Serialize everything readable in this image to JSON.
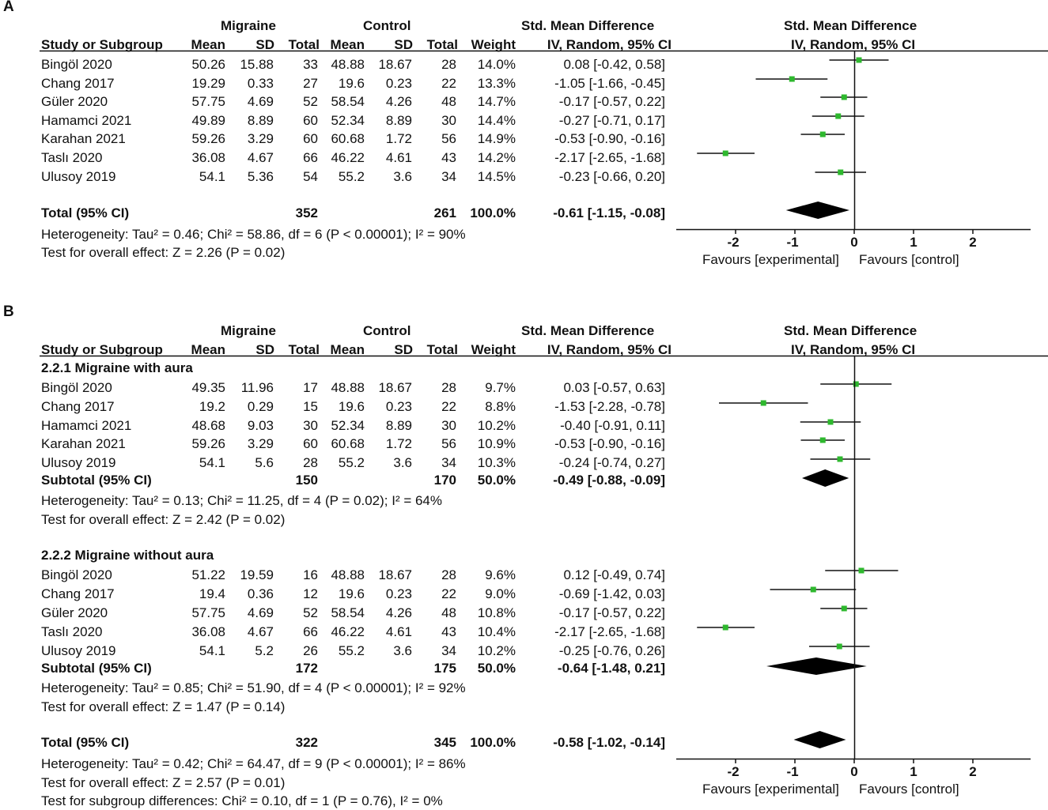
{
  "chart_data": [
    {
      "type": "forest",
      "panel": "A",
      "group_headers": {
        "experimental": "Migraine",
        "control": "Control",
        "effect": "Std. Mean Difference",
        "plot": "Std. Mean Difference"
      },
      "columns": [
        "Study or Subgroup",
        "Mean",
        "SD",
        "Total",
        "Mean",
        "SD",
        "Total",
        "Weight",
        "IV, Random, 95% CI",
        "IV, Random, 95% CI"
      ],
      "studies": [
        {
          "name": "Bingöl 2020",
          "m1": "50.26",
          "sd1": "15.88",
          "n1": "33",
          "m2": "48.88",
          "sd2": "18.67",
          "n2": "28",
          "weight": "14.0%",
          "ci_text": "0.08 [-0.42, 0.58]",
          "est": 0.08,
          "lo": -0.42,
          "hi": 0.58
        },
        {
          "name": "Chang 2017",
          "m1": "19.29",
          "sd1": "0.33",
          "n1": "27",
          "m2": "19.6",
          "sd2": "0.23",
          "n2": "22",
          "weight": "13.3%",
          "ci_text": "-1.05 [-1.66, -0.45]",
          "est": -1.05,
          "lo": -1.66,
          "hi": -0.45
        },
        {
          "name": "Güler 2020",
          "m1": "57.75",
          "sd1": "4.69",
          "n1": "52",
          "m2": "58.54",
          "sd2": "4.26",
          "n2": "48",
          "weight": "14.7%",
          "ci_text": "-0.17 [-0.57, 0.22]",
          "est": -0.17,
          "lo": -0.57,
          "hi": 0.22
        },
        {
          "name": "Hamamci 2021",
          "m1": "49.89",
          "sd1": "8.89",
          "n1": "60",
          "m2": "52.34",
          "sd2": "8.89",
          "n2": "30",
          "weight": "14.4%",
          "ci_text": "-0.27 [-0.71, 0.17]",
          "est": -0.27,
          "lo": -0.71,
          "hi": 0.17
        },
        {
          "name": "Karahan 2021",
          "m1": "59.26",
          "sd1": "3.29",
          "n1": "60",
          "m2": "60.68",
          "sd2": "1.72",
          "n2": "56",
          "weight": "14.9%",
          "ci_text": "-0.53 [-0.90, -0.16]",
          "est": -0.53,
          "lo": -0.9,
          "hi": -0.16
        },
        {
          "name": "Taslı 2020",
          "m1": "36.08",
          "sd1": "4.67",
          "n1": "66",
          "m2": "46.22",
          "sd2": "4.61",
          "n2": "43",
          "weight": "14.2%",
          "ci_text": "-2.17 [-2.65, -1.68]",
          "est": -2.17,
          "lo": -2.65,
          "hi": -1.68
        },
        {
          "name": "Ulusoy 2019",
          "m1": "54.1",
          "sd1": "5.36",
          "n1": "54",
          "m2": "55.2",
          "sd2": "3.6",
          "n2": "34",
          "weight": "14.5%",
          "ci_text": "-0.23 [-0.66, 0.20]",
          "est": -0.23,
          "lo": -0.66,
          "hi": 0.2
        }
      ],
      "total": {
        "label": "Total (95% CI)",
        "n1": "352",
        "n2": "261",
        "weight": "100.0%",
        "ci_text": "-0.61 [-1.15, -0.08]",
        "est": -0.61,
        "lo": -1.15,
        "hi": -0.08
      },
      "heterogeneity": "Heterogeneity: Tau² = 0.46; Chi² = 58.86, df = 6 (P < 0.00001); I² = 90%",
      "overall_effect": "Test for overall effect: Z = 2.26 (P = 0.02)",
      "xlim": [
        -3,
        3
      ],
      "xticks": [
        "-2",
        "-1",
        "0",
        "1",
        "2"
      ],
      "xlabel_left": "Favours [experimental]",
      "xlabel_right": "Favours [control]"
    },
    {
      "type": "forest",
      "panel": "B",
      "group_headers": {
        "experimental": "Migraine",
        "control": "Control",
        "effect": "Std. Mean Difference",
        "plot": "Std. Mean Difference"
      },
      "columns": [
        "Study or Subgroup",
        "Mean",
        "SD",
        "Total",
        "Mean",
        "SD",
        "Total",
        "Weight",
        "IV, Random, 95% CI",
        "IV, Random, 95% CI"
      ],
      "subgroups": [
        {
          "title": "2.2.1 Migraine with aura",
          "studies": [
            {
              "name": "Bingöl 2020",
              "m1": "49.35",
              "sd1": "11.96",
              "n1": "17",
              "m2": "48.88",
              "sd2": "18.67",
              "n2": "28",
              "weight": "9.7%",
              "ci_text": "0.03 [-0.57, 0.63]",
              "est": 0.03,
              "lo": -0.57,
              "hi": 0.63
            },
            {
              "name": "Chang 2017",
              "m1": "19.2",
              "sd1": "0.29",
              "n1": "15",
              "m2": "19.6",
              "sd2": "0.23",
              "n2": "22",
              "weight": "8.8%",
              "ci_text": "-1.53 [-2.28, -0.78]",
              "est": -1.53,
              "lo": -2.28,
              "hi": -0.78
            },
            {
              "name": "Hamamci 2021",
              "m1": "48.68",
              "sd1": "9.03",
              "n1": "30",
              "m2": "52.34",
              "sd2": "8.89",
              "n2": "30",
              "weight": "10.2%",
              "ci_text": "-0.40 [-0.91, 0.11]",
              "est": -0.4,
              "lo": -0.91,
              "hi": 0.11
            },
            {
              "name": "Karahan 2021",
              "m1": "59.26",
              "sd1": "3.29",
              "n1": "60",
              "m2": "60.68",
              "sd2": "1.72",
              "n2": "56",
              "weight": "10.9%",
              "ci_text": "-0.53 [-0.90, -0.16]",
              "est": -0.53,
              "lo": -0.9,
              "hi": -0.16
            },
            {
              "name": "Ulusoy 2019",
              "m1": "54.1",
              "sd1": "5.6",
              "n1": "28",
              "m2": "55.2",
              "sd2": "3.6",
              "n2": "34",
              "weight": "10.3%",
              "ci_text": "-0.24 [-0.74, 0.27]",
              "est": -0.24,
              "lo": -0.74,
              "hi": 0.27
            }
          ],
          "subtotal": {
            "label": "Subtotal (95% CI)",
            "n1": "150",
            "n2": "170",
            "weight": "50.0%",
            "ci_text": "-0.49 [-0.88, -0.09]",
            "est": -0.49,
            "lo": -0.88,
            "hi": -0.09
          },
          "heterogeneity": "Heterogeneity: Tau² = 0.13; Chi² = 11.25, df = 4 (P = 0.02); I² = 64%",
          "overall_effect": "Test for overall effect: Z = 2.42 (P = 0.02)"
        },
        {
          "title": "2.2.2 Migraine without aura",
          "studies": [
            {
              "name": "Bingöl 2020",
              "m1": "51.22",
              "sd1": "19.59",
              "n1": "16",
              "m2": "48.88",
              "sd2": "18.67",
              "n2": "28",
              "weight": "9.6%",
              "ci_text": "0.12 [-0.49, 0.74]",
              "est": 0.12,
              "lo": -0.49,
              "hi": 0.74
            },
            {
              "name": "Chang 2017",
              "m1": "19.4",
              "sd1": "0.36",
              "n1": "12",
              "m2": "19.6",
              "sd2": "0.23",
              "n2": "22",
              "weight": "9.0%",
              "ci_text": "-0.69 [-1.42, 0.03]",
              "est": -0.69,
              "lo": -1.42,
              "hi": 0.03
            },
            {
              "name": "Güler 2020",
              "m1": "57.75",
              "sd1": "4.69",
              "n1": "52",
              "m2": "58.54",
              "sd2": "4.26",
              "n2": "48",
              "weight": "10.8%",
              "ci_text": "-0.17 [-0.57, 0.22]",
              "est": -0.17,
              "lo": -0.57,
              "hi": 0.22
            },
            {
              "name": "Taslı 2020",
              "m1": "36.08",
              "sd1": "4.67",
              "n1": "66",
              "m2": "46.22",
              "sd2": "4.61",
              "n2": "43",
              "weight": "10.4%",
              "ci_text": "-2.17 [-2.65, -1.68]",
              "est": -2.17,
              "lo": -2.65,
              "hi": -1.68
            },
            {
              "name": "Ulusoy 2019",
              "m1": "54.1",
              "sd1": "5.2",
              "n1": "26",
              "m2": "55.2",
              "sd2": "3.6",
              "n2": "34",
              "weight": "10.2%",
              "ci_text": "-0.25 [-0.76, 0.26]",
              "est": -0.25,
              "lo": -0.76,
              "hi": 0.26
            }
          ],
          "subtotal": {
            "label": "Subtotal (95% CI)",
            "n1": "172",
            "n2": "175",
            "weight": "50.0%",
            "ci_text": "-0.64 [-1.48, 0.21]",
            "est": -0.64,
            "lo": -1.48,
            "hi": 0.21
          },
          "heterogeneity": "Heterogeneity: Tau² = 0.85; Chi² = 51.90, df = 4 (P < 0.00001); I² = 92%",
          "overall_effect": "Test for overall effect: Z = 1.47 (P = 0.14)"
        }
      ],
      "total": {
        "label": "Total (95% CI)",
        "n1": "322",
        "n2": "345",
        "weight": "100.0%",
        "ci_text": "-0.58 [-1.02, -0.14]",
        "est": -0.58,
        "lo": -1.02,
        "hi": -0.14
      },
      "heterogeneity": "Heterogeneity: Tau² = 0.42; Chi² = 64.47, df = 9 (P < 0.00001); I² = 86%",
      "overall_effect": "Test for overall effect: Z = 2.57 (P = 0.01)",
      "subgroup_differences": "Test for subgroup differences: Chi² = 0.10, df = 1 (P = 0.76), I² = 0%",
      "xlim": [
        -3,
        3
      ],
      "xticks": [
        "-2",
        "-1",
        "0",
        "1",
        "2"
      ],
      "xlabel_left": "Favours [experimental]",
      "xlabel_right": "Favours [control]"
    }
  ],
  "colors": {
    "marker": "#2eb82e",
    "ink": "#111111"
  }
}
